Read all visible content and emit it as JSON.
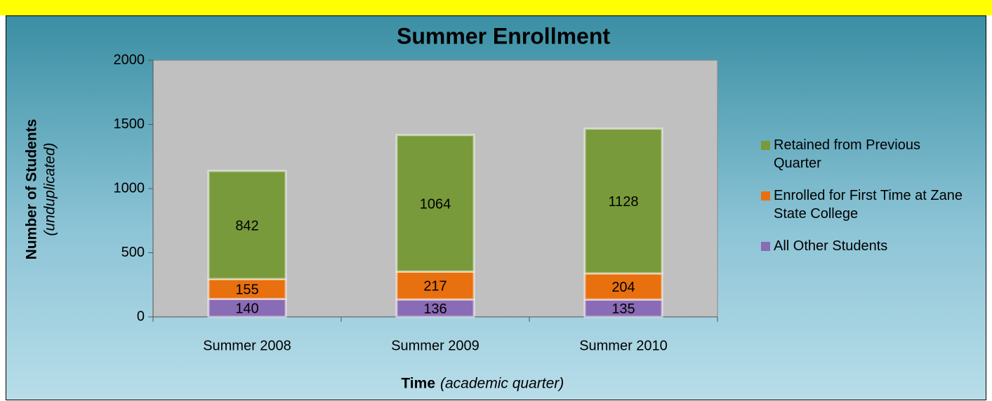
{
  "chart_data": {
    "type": "bar",
    "stacked": true,
    "title": "Summer Enrollment",
    "ylabel": "Number of Students",
    "ylabel_note": "(unduplicated)",
    "xlabel": "Time",
    "xlabel_note": "(academic quarter)",
    "categories": [
      "Summer 2008",
      "Summer 2009",
      "Summer 2010"
    ],
    "series": [
      {
        "name": "All Other Students",
        "color": "#8a6bb5",
        "values": [
          140,
          136,
          135
        ]
      },
      {
        "name": "Enrolled for First Time at Zane State College",
        "color": "#e8700f",
        "values": [
          155,
          217,
          204
        ]
      },
      {
        "name": "Retained from Previous Quarter",
        "color": "#789a3a",
        "values": [
          842,
          1064,
          1128
        ]
      }
    ],
    "ylim": [
      0,
      2000
    ],
    "yticks": [
      0,
      500,
      1000,
      1500,
      2000
    ],
    "legend": "right"
  }
}
